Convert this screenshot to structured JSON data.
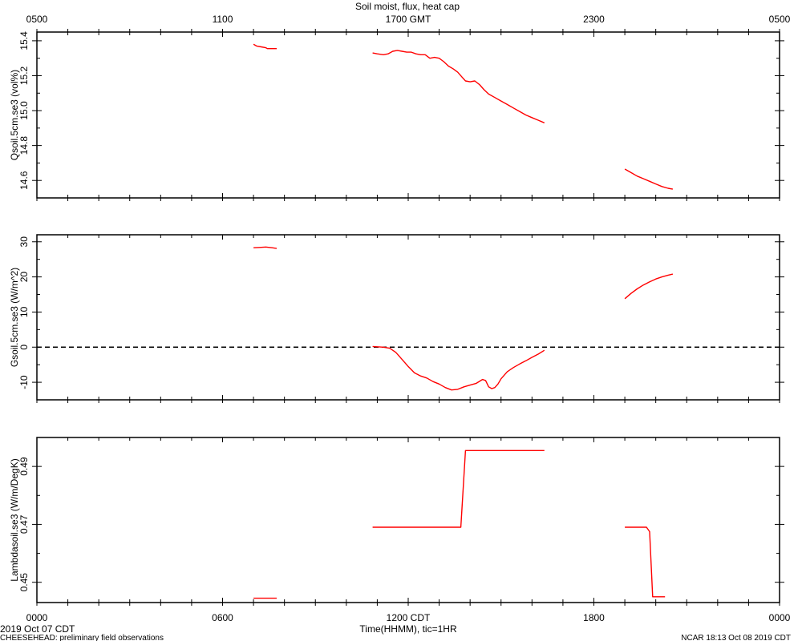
{
  "figure": {
    "title": "Soil moist, flux, heat cap",
    "top_axis_ticks": [
      "0500",
      "1100",
      "1700 GMT",
      "2300",
      "0500"
    ],
    "bottom_axis_ticks": [
      "0000",
      "0600",
      "1200 CDT",
      "1800",
      "0000"
    ],
    "xlabel": "Time(HHMM), tic=1HR",
    "date_label": "2019 Oct 07 CDT",
    "footer_left": "CHEESEHEAD: preliminary field observations",
    "footer_right": "NCAR 18:13 Oct 08 2019 CDT"
  },
  "colors": {
    "series": "#ff0000",
    "axes": "#000000"
  },
  "chart_data": [
    {
      "type": "line",
      "ylabel": "Qsoil.5cm.se3 (vol%)",
      "xlim": [
        0,
        24
      ],
      "ylim": [
        14.5,
        15.45
      ],
      "yticks": [
        14.6,
        14.8,
        15.0,
        15.2,
        15.4
      ],
      "ytick_labels": [
        "14.6",
        "14.8",
        "15.0",
        "15.2",
        "15.4"
      ],
      "grid": false,
      "series": [
        {
          "segments": [
            [
              [
                7.0,
                15.38
              ],
              [
                7.1,
                15.37
              ],
              [
                7.25,
                15.365
              ],
              [
                7.4,
                15.36
              ],
              [
                7.45,
                15.355
              ],
              [
                7.75,
                15.355
              ]
            ],
            [
              [
                10.85,
                15.33
              ],
              [
                11.0,
                15.325
              ],
              [
                11.2,
                15.32
              ],
              [
                11.35,
                15.325
              ],
              [
                11.5,
                15.34
              ],
              [
                11.65,
                15.345
              ],
              [
                11.8,
                15.34
              ],
              [
                11.95,
                15.335
              ],
              [
                12.1,
                15.335
              ],
              [
                12.25,
                15.325
              ],
              [
                12.4,
                15.32
              ],
              [
                12.55,
                15.32
              ],
              [
                12.7,
                15.3
              ],
              [
                12.85,
                15.305
              ],
              [
                13.0,
                15.3
              ],
              [
                13.15,
                15.28
              ],
              [
                13.3,
                15.255
              ],
              [
                13.45,
                15.24
              ],
              [
                13.6,
                15.22
              ],
              [
                13.75,
                15.19
              ],
              [
                13.85,
                15.17
              ],
              [
                14.0,
                15.165
              ],
              [
                14.15,
                15.17
              ],
              [
                14.3,
                15.15
              ],
              [
                14.45,
                15.12
              ],
              [
                14.6,
                15.095
              ],
              [
                14.8,
                15.075
              ],
              [
                15.0,
                15.055
              ],
              [
                15.2,
                15.035
              ],
              [
                15.4,
                15.015
              ],
              [
                15.6,
                14.995
              ],
              [
                15.8,
                14.975
              ],
              [
                16.0,
                14.96
              ],
              [
                16.2,
                14.945
              ],
              [
                16.4,
                14.93
              ]
            ],
            [
              [
                19.0,
                14.665
              ],
              [
                19.2,
                14.645
              ],
              [
                19.4,
                14.625
              ],
              [
                19.6,
                14.61
              ],
              [
                19.8,
                14.595
              ],
              [
                20.0,
                14.58
              ],
              [
                20.2,
                14.565
              ],
              [
                20.4,
                14.555
              ],
              [
                20.55,
                14.55
              ]
            ]
          ]
        }
      ]
    },
    {
      "type": "line",
      "ylabel": "Gsoil.5cm.se3 (W/m^2)",
      "xlim": [
        0,
        24
      ],
      "ylim": [
        -15,
        32
      ],
      "yticks": [
        -10,
        0,
        10,
        20,
        30
      ],
      "ytick_labels": [
        "-10",
        "0",
        "10",
        "20",
        "30"
      ],
      "reference_line": 0,
      "grid": false,
      "series": [
        {
          "segments": [
            [
              [
                7.0,
                28.3
              ],
              [
                7.2,
                28.4
              ],
              [
                7.4,
                28.5
              ],
              [
                7.6,
                28.3
              ],
              [
                7.75,
                28.1
              ]
            ],
            [
              [
                10.85,
                0.2
              ],
              [
                11.0,
                0.1
              ],
              [
                11.2,
                0.0
              ],
              [
                11.4,
                -0.3
              ],
              [
                11.6,
                -1.5
              ],
              [
                11.8,
                -3.5
              ],
              [
                12.0,
                -5.5
              ],
              [
                12.2,
                -7.3
              ],
              [
                12.4,
                -8.2
              ],
              [
                12.6,
                -8.8
              ],
              [
                12.8,
                -9.8
              ],
              [
                13.0,
                -10.5
              ],
              [
                13.2,
                -11.5
              ],
              [
                13.4,
                -12.2
              ],
              [
                13.6,
                -12.0
              ],
              [
                13.8,
                -11.3
              ],
              [
                14.0,
                -10.8
              ],
              [
                14.2,
                -10.3
              ],
              [
                14.4,
                -9.2
              ],
              [
                14.5,
                -9.5
              ],
              [
                14.6,
                -11.3
              ],
              [
                14.7,
                -11.8
              ],
              [
                14.8,
                -11.5
              ],
              [
                14.9,
                -10.5
              ],
              [
                15.0,
                -9.0
              ],
              [
                15.2,
                -7.0
              ],
              [
                15.4,
                -5.8
              ],
              [
                15.6,
                -4.8
              ],
              [
                15.8,
                -3.9
              ],
              [
                16.0,
                -2.9
              ],
              [
                16.2,
                -2.0
              ],
              [
                16.4,
                -0.9
              ]
            ],
            [
              [
                19.0,
                13.8
              ],
              [
                19.2,
                15.3
              ],
              [
                19.4,
                16.6
              ],
              [
                19.6,
                17.7
              ],
              [
                19.8,
                18.6
              ],
              [
                20.0,
                19.4
              ],
              [
                20.2,
                20.0
              ],
              [
                20.4,
                20.5
              ],
              [
                20.55,
                20.8
              ]
            ]
          ]
        }
      ]
    },
    {
      "type": "line",
      "ylabel": "Lambdasoil.se3 (W/m/DegK)",
      "xlim": [
        0,
        24
      ],
      "ylim": [
        0.443,
        0.5
      ],
      "yticks": [
        0.45,
        0.47,
        0.49
      ],
      "ytick_labels": [
        "0.45",
        "0.47",
        "0.49"
      ],
      "grid": false,
      "series": [
        {
          "segments": [
            [
              [
                7.0,
                0.4445
              ],
              [
                7.75,
                0.4445
              ]
            ],
            [
              [
                10.85,
                0.469
              ],
              [
                13.7,
                0.469
              ],
              [
                13.85,
                0.4955
              ],
              [
                16.4,
                0.4955
              ]
            ],
            [
              [
                19.0,
                0.469
              ],
              [
                19.7,
                0.469
              ],
              [
                19.8,
                0.4675
              ],
              [
                19.9,
                0.445
              ],
              [
                20.3,
                0.445
              ]
            ]
          ]
        }
      ]
    }
  ]
}
